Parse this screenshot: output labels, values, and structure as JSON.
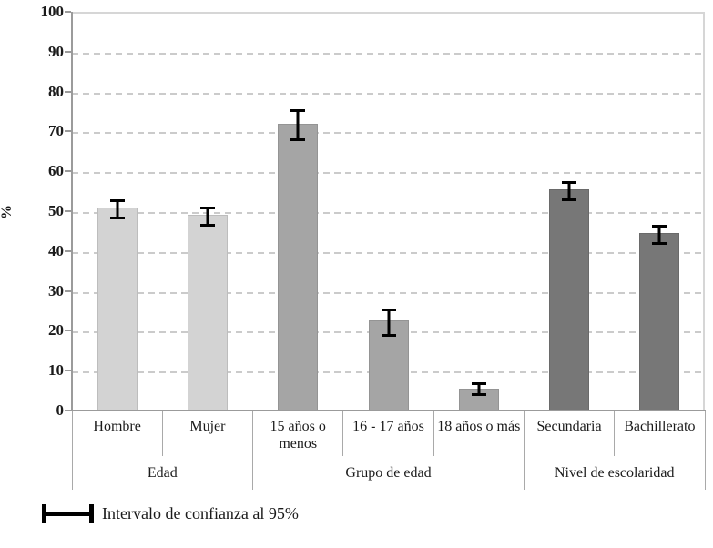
{
  "chart_data": {
    "type": "bar",
    "title": "",
    "xlabel": "",
    "ylabel": "%",
    "ylim": [
      0,
      100
    ],
    "ytick_step": 10,
    "yticks": [
      0,
      10,
      20,
      30,
      40,
      50,
      60,
      70,
      80,
      90,
      100
    ],
    "grid": "horizontal-dashed",
    "legend": {
      "symbol": "error-bar",
      "label": "Intervalo de confianza al 95%"
    },
    "groups": [
      {
        "label": "Edad",
        "color": "#d3d3d3"
      },
      {
        "label": "Grupo de edad",
        "color": "#a5a5a5"
      },
      {
        "label": "Nivel de escolaridad",
        "color": "#777777"
      }
    ],
    "bars": [
      {
        "category": "Hombre",
        "group": 0,
        "value": 51,
        "ci_low": 48.5,
        "ci_high": 53.5
      },
      {
        "category": "Mujer",
        "group": 0,
        "value": 49,
        "ci_low": 46.5,
        "ci_high": 51.5
      },
      {
        "category": "15 años o menos",
        "group": 1,
        "value": 72,
        "ci_low": 68,
        "ci_high": 76
      },
      {
        "category": "16 - 17 años",
        "group": 1,
        "value": 22.5,
        "ci_low": 19,
        "ci_high": 26
      },
      {
        "category": "18 años o más",
        "group": 1,
        "value": 5.5,
        "ci_low": 4,
        "ci_high": 7.5
      },
      {
        "category": "Secundaria",
        "group": 2,
        "value": 55.5,
        "ci_low": 53,
        "ci_high": 58
      },
      {
        "category": "Bachillerato",
        "group": 2,
        "value": 44.5,
        "ci_low": 42,
        "ci_high": 47
      }
    ],
    "colors": {
      "axis": "#9b9b9b",
      "gridline": "#cbcbcb",
      "plot_border": "#d6d6d6",
      "error_bar": "#000000",
      "text": "#1b1b1b"
    }
  }
}
